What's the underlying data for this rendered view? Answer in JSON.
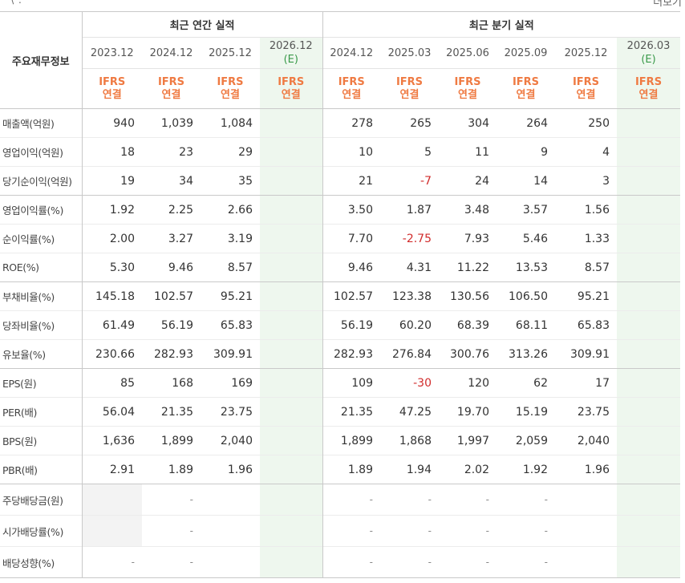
{
  "top": {
    "left_fragment": "' \\ .",
    "right_fragment": "더보기"
  },
  "table": {
    "row_header_label": "주요재무정보",
    "annual_title": "최근 연간 실적",
    "quarter_title": "최근 분기 실적",
    "annual_columns": [
      {
        "period": "2023.12",
        "est": "",
        "basis1": "IFRS",
        "basis2": "연결"
      },
      {
        "period": "2024.12",
        "est": "",
        "basis1": "IFRS",
        "basis2": "연결"
      },
      {
        "period": "2025.12",
        "est": "",
        "basis1": "IFRS",
        "basis2": "연결"
      },
      {
        "period": "2026.12",
        "est": "(E)",
        "basis1": "IFRS",
        "basis2": "연결"
      }
    ],
    "quarter_columns": [
      {
        "period": "2024.12",
        "est": "",
        "basis1": "IFRS",
        "basis2": "연결"
      },
      {
        "period": "2025.03",
        "est": "",
        "basis1": "IFRS",
        "basis2": "연결"
      },
      {
        "period": "2025.06",
        "est": "",
        "basis1": "IFRS",
        "basis2": "연결"
      },
      {
        "period": "2025.09",
        "est": "",
        "basis1": "IFRS",
        "basis2": "연결"
      },
      {
        "period": "2025.12",
        "est": "",
        "basis1": "IFRS",
        "basis2": "연결"
      },
      {
        "period": "2026.03",
        "est": "(E)",
        "basis1": "IFRS",
        "basis2": "연결"
      }
    ],
    "rows": [
      {
        "label": "매출액(억원)",
        "values": [
          "940",
          "1,039",
          "1,084",
          "",
          "278",
          "265",
          "304",
          "264",
          "250",
          ""
        ]
      },
      {
        "label": "영업이익(억원)",
        "values": [
          "18",
          "23",
          "29",
          "",
          "10",
          "5",
          "11",
          "9",
          "4",
          ""
        ]
      },
      {
        "label": "당기순이익(억원)",
        "values": [
          "19",
          "34",
          "35",
          "",
          "21",
          "-7",
          "24",
          "14",
          "3",
          ""
        ]
      },
      {
        "label": "영업이익률(%)",
        "values": [
          "1.92",
          "2.25",
          "2.66",
          "",
          "3.50",
          "1.87",
          "3.48",
          "3.57",
          "1.56",
          ""
        ]
      },
      {
        "label": "순이익률(%)",
        "values": [
          "2.00",
          "3.27",
          "3.19",
          "",
          "7.70",
          "-2.75",
          "7.93",
          "5.46",
          "1.33",
          ""
        ]
      },
      {
        "label": "ROE(%)",
        "values": [
          "5.30",
          "9.46",
          "8.57",
          "",
          "9.46",
          "4.31",
          "11.22",
          "13.53",
          "8.57",
          ""
        ]
      },
      {
        "label": "부채비율(%)",
        "values": [
          "145.18",
          "102.57",
          "95.21",
          "",
          "102.57",
          "123.38",
          "130.56",
          "106.50",
          "95.21",
          ""
        ]
      },
      {
        "label": "당좌비율(%)",
        "values": [
          "61.49",
          "56.19",
          "65.83",
          "",
          "56.19",
          "60.20",
          "68.39",
          "68.11",
          "65.83",
          ""
        ]
      },
      {
        "label": "유보율(%)",
        "values": [
          "230.66",
          "282.93",
          "309.91",
          "",
          "282.93",
          "276.84",
          "300.76",
          "313.26",
          "309.91",
          ""
        ]
      },
      {
        "label": "EPS(원)",
        "values": [
          "85",
          "168",
          "169",
          "",
          "109",
          "-30",
          "120",
          "62",
          "17",
          ""
        ]
      },
      {
        "label": "PER(배)",
        "values": [
          "56.04",
          "21.35",
          "23.75",
          "",
          "21.35",
          "47.25",
          "19.70",
          "15.19",
          "23.75",
          ""
        ]
      },
      {
        "label": "BPS(원)",
        "values": [
          "1,636",
          "1,899",
          "2,040",
          "",
          "1,899",
          "1,868",
          "1,997",
          "2,059",
          "2,040",
          ""
        ]
      },
      {
        "label": "PBR(배)",
        "values": [
          "2.91",
          "1.89",
          "1.96",
          "",
          "1.89",
          "1.94",
          "2.02",
          "1.92",
          "1.96",
          ""
        ]
      },
      {
        "label": "주당배당금(원)",
        "values": [
          "",
          "-",
          "",
          "",
          "-",
          "-",
          "-",
          "-",
          "",
          ""
        ]
      },
      {
        "label": "시가배당률(%)",
        "values": [
          "",
          "-",
          "",
          "",
          "-",
          "-",
          "-",
          "-",
          "",
          ""
        ]
      },
      {
        "label": "배당성향(%)",
        "values": [
          "-",
          "-",
          "",
          "",
          "-",
          "-",
          "-",
          "-",
          "",
          ""
        ]
      }
    ]
  }
}
